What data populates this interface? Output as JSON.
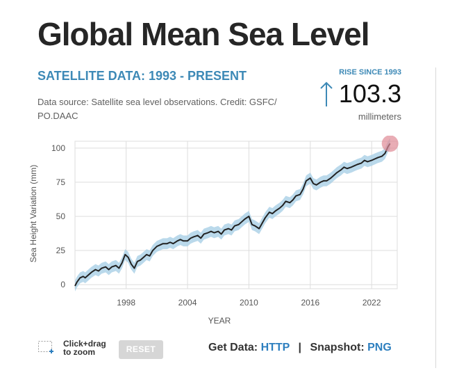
{
  "page": {
    "title": "Global Mean Sea Level",
    "subtitle": "SATELLITE DATA: 1993 - PRESENT",
    "source": "Data source: Satellite sea level observations. Credit: GSFC/ PO.DAAC",
    "rise_label": "RISE SINCE 1993",
    "rise_value": "103.3",
    "rise_unit": "millimeters",
    "zoom_hint_line1": "Click+drag",
    "zoom_hint_line2": "to zoom",
    "reset_label": "RESET",
    "get_data_label": "Get Data:",
    "http_link": "HTTP",
    "separator": "|",
    "snapshot_label": "Snapshot:",
    "png_link": "PNG"
  },
  "colors": {
    "accent": "#3d89b6",
    "link": "#2d7fbf",
    "line": "#222222",
    "band": "#a9cfe6",
    "highlight": "#e08a96"
  },
  "chart_data": {
    "type": "line",
    "title": "Global Mean Sea Level",
    "xlabel": "YEAR",
    "ylabel": "Sea Height Variation (mm)",
    "xlim": [
      1993,
      2024.5
    ],
    "ylim": [
      -3,
      105
    ],
    "xticks": [
      1998,
      2004,
      2010,
      2016,
      2022
    ],
    "yticks": [
      0,
      25,
      50,
      75,
      100
    ],
    "grid": true,
    "uncertainty_band": "±4 mm shaded band",
    "highlight_point": {
      "x": 2023.8,
      "y": 103.3
    },
    "series": [
      {
        "x": [
          1993.0,
          1993.2,
          1993.5,
          1993.8,
          1994.0,
          1994.3,
          1994.6,
          1995.0,
          1995.3,
          1995.6,
          1996.0,
          1996.3,
          1996.6,
          1997.0,
          1997.3,
          1997.6,
          1997.9,
          1998.2,
          1998.5,
          1998.8,
          1999.1,
          1999.4,
          1999.7,
          2000.0,
          2000.3,
          2000.6,
          2001.0,
          2001.3,
          2001.6,
          2002.0,
          2002.3,
          2002.6,
          2003.0,
          2003.3,
          2003.6,
          2004.0,
          2004.3,
          2004.6,
          2005.0,
          2005.3,
          2005.6,
          2006.0,
          2006.3,
          2006.6,
          2007.0,
          2007.3,
          2007.6,
          2008.0,
          2008.3,
          2008.6,
          2009.0,
          2009.3,
          2009.6,
          2010.0,
          2010.3,
          2010.6,
          2011.0,
          2011.3,
          2011.6,
          2012.0,
          2012.3,
          2012.6,
          2013.0,
          2013.3,
          2013.6,
          2014.0,
          2014.3,
          2014.6,
          2015.0,
          2015.3,
          2015.6,
          2016.0,
          2016.3,
          2016.6,
          2017.0,
          2017.3,
          2017.6,
          2018.0,
          2018.3,
          2018.6,
          2019.0,
          2019.3,
          2019.6,
          2020.0,
          2020.3,
          2020.6,
          2021.0,
          2021.3,
          2021.6,
          2022.0,
          2022.3,
          2022.6,
          2023.0,
          2023.3,
          2023.6,
          2023.8
        ],
        "y": [
          -1,
          2,
          5,
          6,
          5,
          7,
          9,
          11,
          10,
          12,
          13,
          11,
          13,
          14,
          12,
          16,
          22,
          20,
          15,
          12,
          17,
          18,
          20,
          22,
          21,
          25,
          28,
          29,
          30,
          30,
          31,
          30,
          32,
          33,
          32,
          32,
          34,
          35,
          36,
          34,
          37,
          38,
          39,
          38,
          39,
          37,
          40,
          41,
          40,
          43,
          44,
          46,
          48,
          50,
          44,
          43,
          41,
          45,
          49,
          53,
          52,
          54,
          56,
          58,
          61,
          60,
          62,
          65,
          66,
          70,
          76,
          78,
          74,
          73,
          75,
          76,
          76,
          78,
          80,
          82,
          84,
          86,
          85,
          86,
          87,
          88,
          89,
          91,
          90,
          91,
          92,
          93,
          94,
          96,
          101,
          103.3
        ]
      }
    ]
  }
}
